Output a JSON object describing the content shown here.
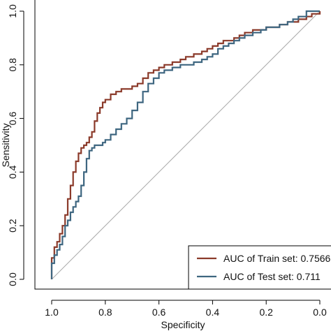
{
  "chart_data": {
    "type": "line",
    "title": "",
    "xlabel": "Specificity",
    "ylabel": "Sensitivity",
    "xlim": [
      1.0,
      0.0
    ],
    "ylim": [
      0.0,
      1.0
    ],
    "x_reversed": true,
    "x_ticks": [
      "1.0",
      "0.8",
      "0.6",
      "0.4",
      "0.2",
      "0.0"
    ],
    "x_tick_values": [
      1.0,
      0.8,
      0.6,
      0.4,
      0.2,
      0.0
    ],
    "y_ticks": [
      "0.0",
      "0.2",
      "0.4",
      "0.6",
      "0.8",
      "1.0"
    ],
    "y_tick_values": [
      0.0,
      0.2,
      0.4,
      0.6,
      0.8,
      1.0
    ],
    "grid": false,
    "legend_position": "bottom-right",
    "reference_line": {
      "from": [
        1.0,
        0.0
      ],
      "to": [
        0.0,
        1.0
      ],
      "color": "#aaaaaa"
    },
    "series": [
      {
        "name": "AUC of Train set: 0.7566",
        "color": "#8b3a2a",
        "x": [
          1.0,
          1.0,
          0.99,
          0.98,
          0.97,
          0.96,
          0.95,
          0.94,
          0.93,
          0.92,
          0.91,
          0.9,
          0.89,
          0.88,
          0.87,
          0.86,
          0.85,
          0.84,
          0.83,
          0.82,
          0.81,
          0.8,
          0.78,
          0.76,
          0.74,
          0.72,
          0.7,
          0.68,
          0.66,
          0.64,
          0.62,
          0.6,
          0.58,
          0.55,
          0.52,
          0.5,
          0.47,
          0.44,
          0.42,
          0.4,
          0.38,
          0.36,
          0.34,
          0.32,
          0.3,
          0.28,
          0.25,
          0.22,
          0.2,
          0.18,
          0.15,
          0.12,
          0.1,
          0.08,
          0.05,
          0.03,
          0.0
        ],
        "y": [
          0.0,
          0.08,
          0.12,
          0.14,
          0.17,
          0.2,
          0.24,
          0.3,
          0.35,
          0.4,
          0.44,
          0.47,
          0.49,
          0.5,
          0.51,
          0.53,
          0.55,
          0.59,
          0.62,
          0.64,
          0.66,
          0.67,
          0.69,
          0.7,
          0.71,
          0.71,
          0.72,
          0.73,
          0.75,
          0.77,
          0.78,
          0.79,
          0.8,
          0.81,
          0.82,
          0.83,
          0.84,
          0.85,
          0.86,
          0.87,
          0.88,
          0.89,
          0.89,
          0.9,
          0.91,
          0.92,
          0.93,
          0.93,
          0.94,
          0.94,
          0.95,
          0.96,
          0.96,
          0.97,
          0.98,
          0.99,
          1.0
        ]
      },
      {
        "name": "AUC of Test set: 0.711",
        "color": "#3e6680",
        "x": [
          1.0,
          1.0,
          0.99,
          0.98,
          0.97,
          0.96,
          0.95,
          0.94,
          0.93,
          0.92,
          0.91,
          0.9,
          0.89,
          0.88,
          0.87,
          0.86,
          0.85,
          0.84,
          0.83,
          0.82,
          0.81,
          0.8,
          0.78,
          0.76,
          0.74,
          0.72,
          0.7,
          0.68,
          0.66,
          0.64,
          0.62,
          0.6,
          0.58,
          0.55,
          0.52,
          0.5,
          0.47,
          0.44,
          0.42,
          0.4,
          0.38,
          0.36,
          0.34,
          0.32,
          0.3,
          0.28,
          0.25,
          0.22,
          0.2,
          0.18,
          0.15,
          0.12,
          0.1,
          0.08,
          0.05,
          0.03,
          0.0
        ],
        "y": [
          0.0,
          0.06,
          0.09,
          0.11,
          0.13,
          0.16,
          0.2,
          0.22,
          0.25,
          0.27,
          0.29,
          0.31,
          0.35,
          0.4,
          0.45,
          0.48,
          0.49,
          0.5,
          0.5,
          0.5,
          0.51,
          0.52,
          0.54,
          0.56,
          0.58,
          0.6,
          0.63,
          0.66,
          0.7,
          0.73,
          0.75,
          0.77,
          0.78,
          0.79,
          0.8,
          0.8,
          0.81,
          0.82,
          0.83,
          0.84,
          0.86,
          0.87,
          0.88,
          0.89,
          0.9,
          0.91,
          0.92,
          0.93,
          0.94,
          0.94,
          0.95,
          0.96,
          0.97,
          0.98,
          1.0,
          1.0,
          1.0
        ]
      }
    ]
  }
}
